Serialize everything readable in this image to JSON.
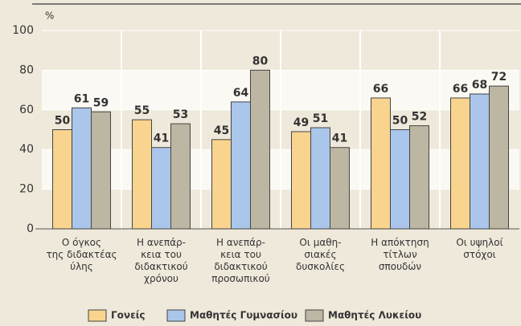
{
  "chart_data": {
    "type": "bar",
    "y_label": "%",
    "categories": [
      "Ο όγκος\nτης διδακτέας\nύλης",
      "Η ανεπάρ-\nκεια του\nδιδακτικού\nχρόνου",
      "Η ανεπάρ-\nκεια του\nδιδακτικού\nπροσωπικού",
      "Οι μαθη-\nσιακές\nδυσκολίες",
      "Η απόκτηση\nτίτλων\nσπουδών",
      "Οι υψηλοί\nστόχοι"
    ],
    "series": [
      {
        "name": "Γονείς",
        "color": "#f8d48e",
        "values": [
          50,
          55,
          45,
          49,
          66,
          66
        ]
      },
      {
        "name": "Μαθητές Γυμνασίου",
        "color": "#aac6ea",
        "values": [
          61,
          41,
          64,
          51,
          50,
          68
        ]
      },
      {
        "name": "Μαθητές Λυκείου",
        "color": "#bdb6a2",
        "values": [
          59,
          53,
          80,
          41,
          52,
          72
        ]
      }
    ],
    "ylim": [
      0,
      100
    ],
    "yticks": [
      0,
      20,
      40,
      60,
      80,
      100
    ],
    "grid": true,
    "legend": "bottom"
  }
}
